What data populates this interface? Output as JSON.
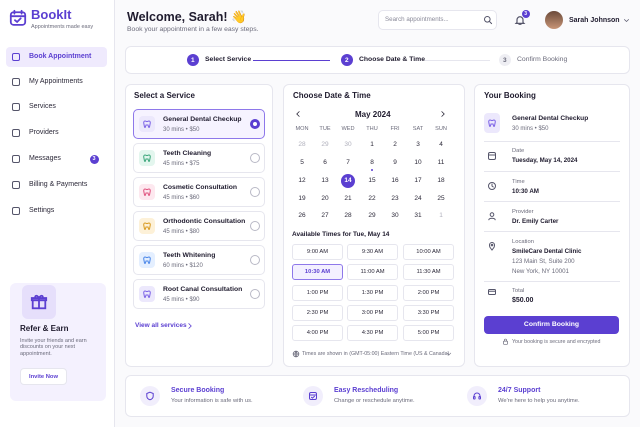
{
  "sidebar": {
    "brand": "BookIt",
    "tagline": "Appointments made easy",
    "nav": [
      {
        "label": "Book Appointment"
      },
      {
        "label": "My Appointments"
      },
      {
        "label": "Services"
      },
      {
        "label": "Providers"
      },
      {
        "label": "Messages",
        "badge": "3"
      },
      {
        "label": "Billing & Payments"
      },
      {
        "label": "Settings"
      }
    ],
    "refer": {
      "title": "Refer & Earn",
      "text": "Invite your friends and earn discounts on your next appointment.",
      "button": "Invite Now"
    }
  },
  "header": {
    "greeting": "Welcome, Sarah! 👋",
    "subtitle": "Book your appointment in a few easy steps.",
    "search_placeholder": "Search appointments...",
    "notifications": "3",
    "user": "Sarah Johnson"
  },
  "steps": [
    {
      "number": "1",
      "label": "Select Service"
    },
    {
      "number": "2",
      "label": "Choose Date & Time"
    },
    {
      "number": "3",
      "label": "Confirm Booking"
    }
  ],
  "services": {
    "title": "Select a Service",
    "items": [
      {
        "name": "General Dental Checkup",
        "meta": "30 mins • $50"
      },
      {
        "name": "Teeth Cleaning",
        "meta": "45 mins • $75"
      },
      {
        "name": "Cosmetic Consultation",
        "meta": "45 mins • $60"
      },
      {
        "name": "Orthodontic Consultation",
        "meta": "45 mins • $80"
      },
      {
        "name": "Teeth Whitening",
        "meta": "60 mins • $120"
      },
      {
        "name": "Root Canal Consultation",
        "meta": "45 mins • $90"
      }
    ],
    "link": "View all services"
  },
  "calendar": {
    "title": "Choose Date & Time",
    "month": "May 2024",
    "weekdays": [
      "MON",
      "TUE",
      "WED",
      "THU",
      "FRI",
      "SAT",
      "SUN"
    ],
    "weeks": [
      [
        28,
        29,
        30,
        1,
        2,
        3,
        4
      ],
      [
        5,
        6,
        7,
        8,
        9,
        10,
        11
      ],
      [
        12,
        13,
        14,
        15,
        16,
        17,
        18
      ],
      [
        19,
        20,
        21,
        22,
        23,
        24,
        25
      ],
      [
        26,
        27,
        28,
        29,
        30,
        31,
        1
      ]
    ],
    "times_title": "Available Times for Tue, May 14",
    "times": [
      "9:00 AM",
      "9:30 AM",
      "10:00 AM",
      "10:30 AM",
      "11:00 AM",
      "11:30 AM",
      "1:00 PM",
      "1:30 PM",
      "2:00 PM",
      "2:30 PM",
      "3:00 PM",
      "3:30 PM",
      "4:00 PM",
      "4:30 PM",
      "5:00 PM"
    ],
    "timezone": "Times are shown in (GMT-05:00) Eastern Time (US & Canada)"
  },
  "booking": {
    "title": "Your Booking",
    "service": "General Dental Checkup",
    "meta": "30 mins • $50",
    "details": [
      {
        "label": "Date",
        "lines": [
          "Tuesday, May 14, 2024"
        ]
      },
      {
        "label": "Time",
        "lines": [
          "10:30 AM"
        ]
      },
      {
        "label": "Provider",
        "lines": [
          "Dr. Emily Carter"
        ]
      },
      {
        "label": "Location",
        "lines": [
          "SmileCare Dental Clinic",
          "123 Main St, Suite 200",
          "New York, NY 10001"
        ]
      },
      {
        "label": "Total",
        "lines": [
          "$50.00"
        ]
      }
    ],
    "button": "Confirm Booking",
    "note": "Your booking is secure and encrypted"
  },
  "features": [
    {
      "title": "Secure Booking",
      "text": "Your information is safe with us."
    },
    {
      "title": "Easy Rescheduling",
      "text": "Change or reschedule anytime."
    },
    {
      "title": "24/7 Support",
      "text": "We're here to help you anytime."
    }
  ]
}
